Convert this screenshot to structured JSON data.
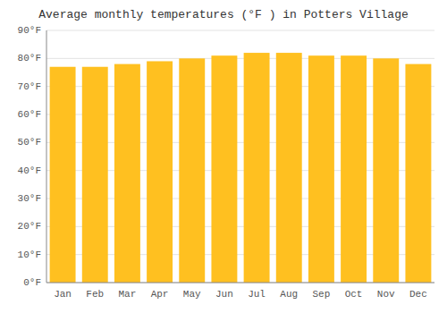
{
  "chart_data": {
    "type": "bar",
    "title": "Average monthly temperatures (°F ) in Potters Village",
    "categories": [
      "Jan",
      "Feb",
      "Mar",
      "Apr",
      "May",
      "Jun",
      "Jul",
      "Aug",
      "Sep",
      "Oct",
      "Nov",
      "Dec"
    ],
    "values": [
      77,
      77,
      78,
      79,
      80,
      81,
      82,
      82,
      81,
      81,
      80,
      78
    ],
    "color": "#FFC020",
    "ylim": [
      0,
      90
    ],
    "yticks": [
      {
        "value": 0,
        "label": "0°F"
      },
      {
        "value": 10,
        "label": "10°F"
      },
      {
        "value": 20,
        "label": "20°F"
      },
      {
        "value": 30,
        "label": "30°F"
      },
      {
        "value": 40,
        "label": "40°F"
      },
      {
        "value": 50,
        "label": "50°F"
      },
      {
        "value": 60,
        "label": "60°F"
      },
      {
        "value": 70,
        "label": "70°F"
      },
      {
        "value": 80,
        "label": "80°F"
      },
      {
        "value": 90,
        "label": "90°F"
      }
    ],
    "grid": true
  }
}
